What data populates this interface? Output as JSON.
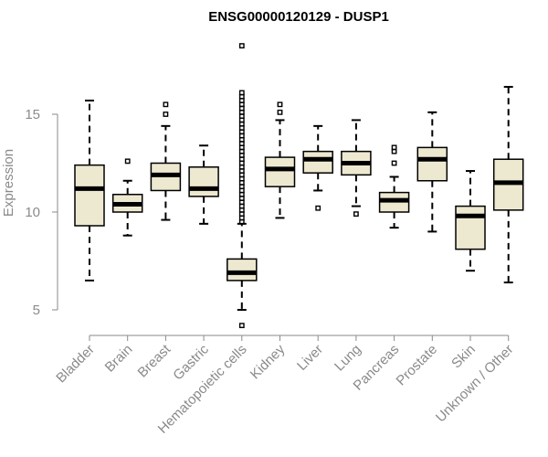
{
  "chart_data": {
    "type": "box",
    "title": "ENSG00000120129 - DUSP1",
    "xlabel": "",
    "ylabel": "Expression",
    "ylim": [
      4,
      19
    ],
    "yticks": [
      5,
      10,
      15
    ],
    "grid": false,
    "colors": {
      "box_fill": "#EDE8D0",
      "stroke": "#000000",
      "axis": "#8a8a8a"
    },
    "categories": [
      "Bladder",
      "Brain",
      "Breast",
      "Gastric",
      "Hematopoietic cells",
      "Kidney",
      "Liver",
      "Lung",
      "Pancreas",
      "Prostate",
      "Skin",
      "Unknown / Other"
    ],
    "boxes": [
      {
        "q1": 9.3,
        "median": 11.2,
        "q3": 12.4,
        "whisker_low": 6.5,
        "whisker_high": 15.7,
        "outliers": []
      },
      {
        "q1": 10.0,
        "median": 10.4,
        "q3": 10.9,
        "whisker_low": 8.8,
        "whisker_high": 11.6,
        "outliers": [
          12.6
        ]
      },
      {
        "q1": 11.1,
        "median": 11.9,
        "q3": 12.5,
        "whisker_low": 9.6,
        "whisker_high": 14.4,
        "outliers": [
          15.0,
          15.5
        ]
      },
      {
        "q1": 10.8,
        "median": 11.2,
        "q3": 12.3,
        "whisker_low": 9.4,
        "whisker_high": 13.4,
        "outliers": []
      },
      {
        "q1": 6.5,
        "median": 6.9,
        "q3": 7.6,
        "whisker_low": 5.0,
        "whisker_high": 9.4,
        "outliers": [
          4.2,
          9.5,
          9.7,
          9.9,
          10.1,
          10.3,
          10.5,
          10.7,
          10.9,
          11.1,
          11.3,
          11.5,
          11.7,
          11.9,
          12.1,
          12.3,
          12.5,
          12.7,
          12.9,
          13.1,
          13.3,
          13.5,
          13.7,
          13.9,
          14.1,
          14.3,
          14.5,
          14.7,
          14.9,
          15.1,
          15.3,
          15.5,
          15.7,
          15.9,
          16.1,
          18.5
        ]
      },
      {
        "q1": 11.3,
        "median": 12.2,
        "q3": 12.8,
        "whisker_low": 9.7,
        "whisker_high": 14.7,
        "outliers": [
          15.1,
          15.5
        ]
      },
      {
        "q1": 12.0,
        "median": 12.7,
        "q3": 13.1,
        "whisker_low": 11.1,
        "whisker_high": 14.4,
        "outliers": [
          10.2
        ]
      },
      {
        "q1": 11.9,
        "median": 12.5,
        "q3": 13.1,
        "whisker_low": 10.3,
        "whisker_high": 14.7,
        "outliers": [
          9.9
        ]
      },
      {
        "q1": 10.0,
        "median": 10.6,
        "q3": 11.0,
        "whisker_low": 9.2,
        "whisker_high": 11.8,
        "outliers": [
          12.5,
          13.1,
          13.3
        ]
      },
      {
        "q1": 11.6,
        "median": 12.7,
        "q3": 13.3,
        "whisker_low": 9.0,
        "whisker_high": 15.1,
        "outliers": []
      },
      {
        "q1": 8.1,
        "median": 9.8,
        "q3": 10.3,
        "whisker_low": 7.0,
        "whisker_high": 12.1,
        "outliers": []
      },
      {
        "q1": 10.1,
        "median": 11.5,
        "q3": 12.7,
        "whisker_low": 6.4,
        "whisker_high": 16.4,
        "outliers": []
      }
    ]
  }
}
